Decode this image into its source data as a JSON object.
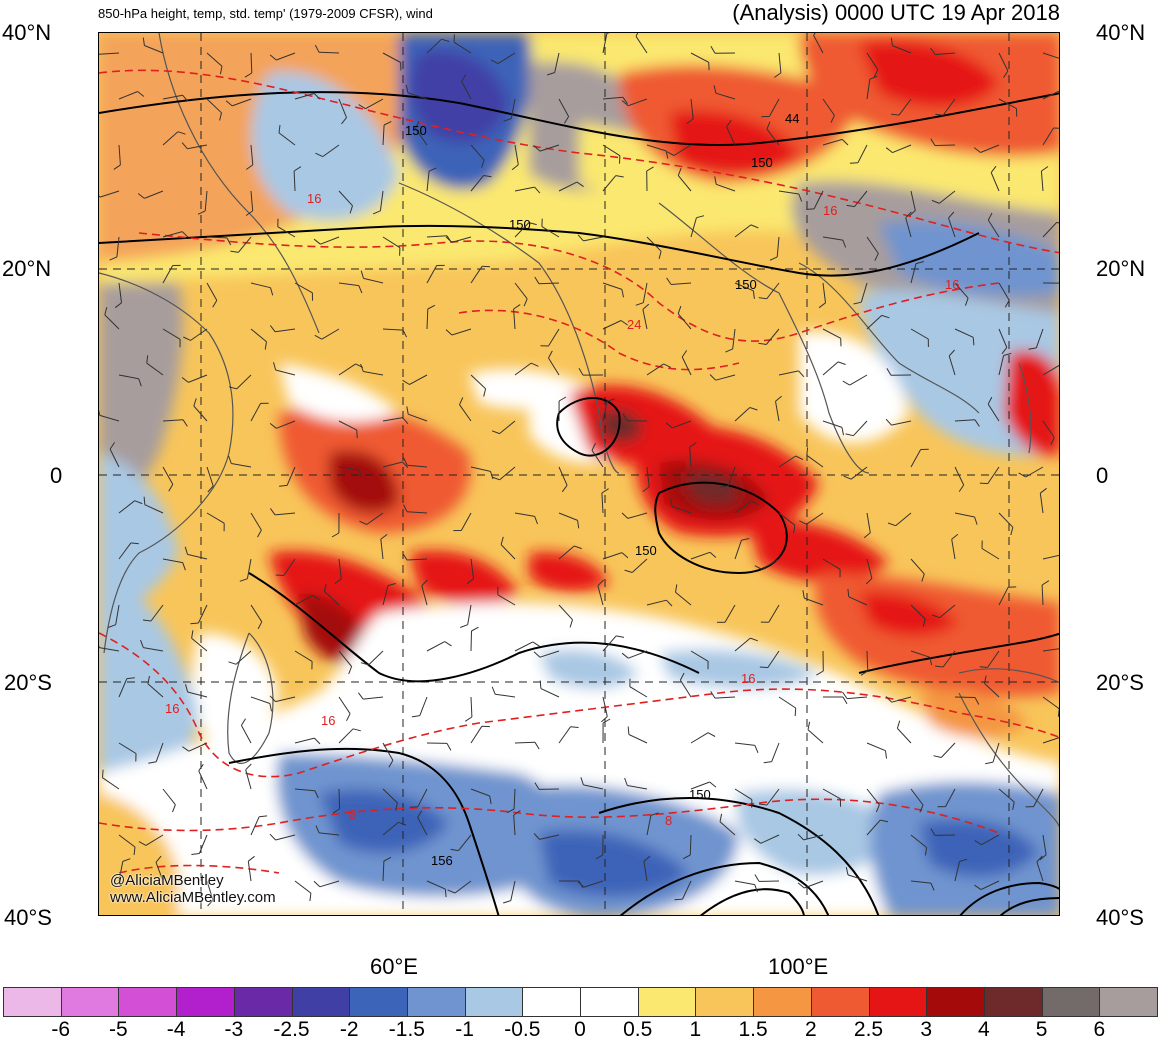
{
  "header": {
    "title_left": "850-hPa height, temp, std. temp' (1979-2009 CFSR), wind",
    "title_right": "(Analysis) 0000 UTC 19 Apr 2018"
  },
  "map": {
    "lat_labels": [
      "40°N",
      "20°N",
      "0",
      "20°S",
      "40°S"
    ],
    "lon_labels": [
      "60°E",
      "100°E"
    ],
    "height_contour_labels": [
      "150",
      "150",
      "150",
      "150",
      "150",
      "156",
      "44"
    ],
    "temp_contour_labels": [
      "16",
      "16",
      "16",
      "16",
      "16",
      "24",
      "8",
      "8"
    ]
  },
  "credit": {
    "handle": "@AliciaMBentley",
    "website": "www.AliciaMBentley.com"
  },
  "colorbar": {
    "colors": [
      "#ebb8e8",
      "#e07ae0",
      "#d34fd6",
      "#b21fcc",
      "#6a2aa8",
      "#3f3fa6",
      "#3c64b8",
      "#6f94cf",
      "#a9c8e4",
      "#ffffff",
      "#ffffff",
      "#fbe870",
      "#f8c55a",
      "#f49642",
      "#ef5a32",
      "#e51515",
      "#a40a0a",
      "#6e2a2a",
      "#736a6a",
      "#a79d9d"
    ],
    "ticks": [
      "-6",
      "-5",
      "-4",
      "-3",
      "-2.5",
      "-2",
      "-1.5",
      "-1",
      "-0.5",
      "0",
      "0.5",
      "1",
      "1.5",
      "2",
      "2.5",
      "3",
      "4",
      "5",
      "6"
    ]
  }
}
